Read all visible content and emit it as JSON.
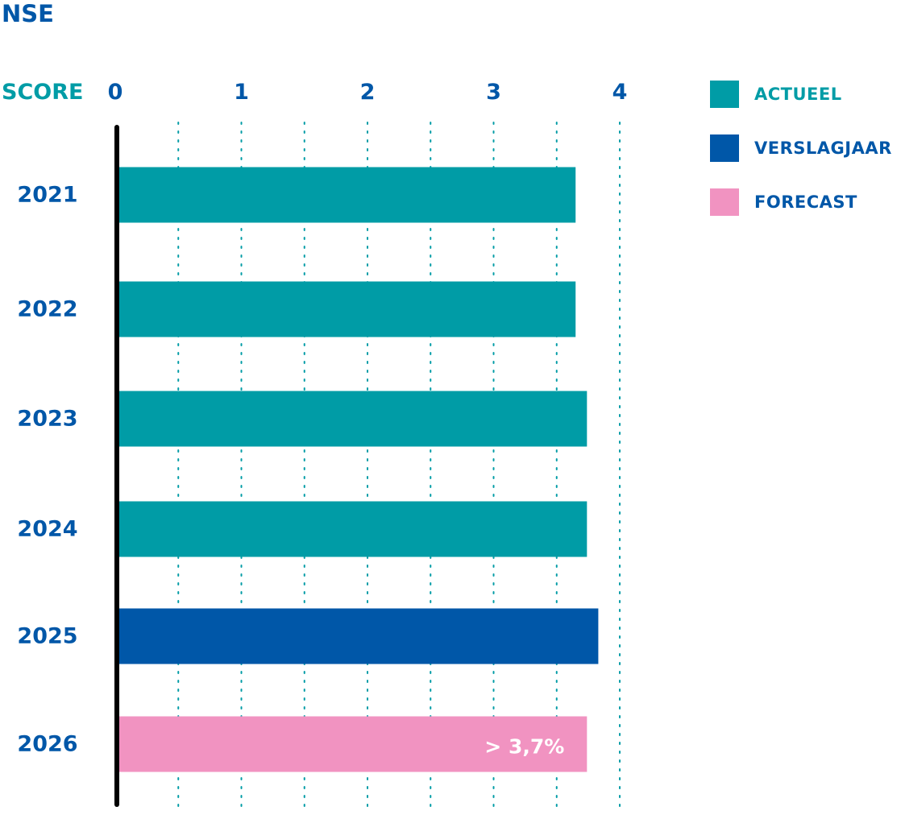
{
  "title": "NSE",
  "chart_data": {
    "type": "bar",
    "orientation": "horizontal",
    "axis_title": "SCORE",
    "xlim": [
      0,
      4
    ],
    "ticks": [
      "0",
      "1",
      "2",
      "3",
      "4"
    ],
    "grid": true,
    "categories": [
      "2021",
      "2022",
      "2023",
      "2024",
      "2025",
      "2026"
    ],
    "values": [
      3.65,
      3.65,
      3.74,
      3.74,
      3.83,
      3.74
    ],
    "bar_series": [
      "ACTUEEL",
      "ACTUEEL",
      "ACTUEEL",
      "ACTUEEL",
      "VERSLAGJAAR",
      "FORECAST"
    ],
    "data_labels": [
      "",
      "",
      "",
      "",
      "",
      "> 3,7%"
    ],
    "legend_position": "right",
    "legend": [
      {
        "name": "ACTUEEL",
        "color": "#009ca6",
        "text_color": "#009ca6"
      },
      {
        "name": "VERSLAGJAAR",
        "color": "#0057a8",
        "text_color": "#0057a8"
      },
      {
        "name": "FORECAST",
        "color": "#f193c1",
        "text_color": "#0057a8"
      }
    ],
    "colors": {
      "axis": "#000000",
      "grid": "#009ca6"
    }
  }
}
